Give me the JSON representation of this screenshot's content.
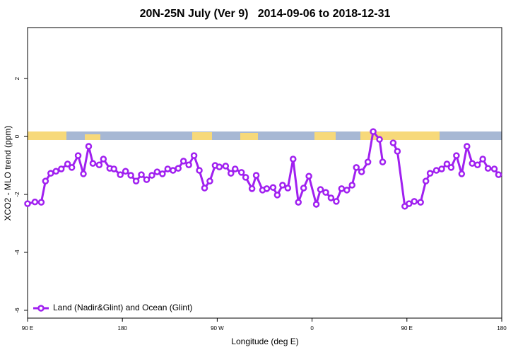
{
  "chart_data": {
    "type": "line",
    "title": "20N-25N July (Ver 9)   2014-09-06 to 2018-12-31",
    "x_label": "Longitude (deg E)",
    "y_label": "XCO2 - MLO trend (ppm)",
    "xlim": [
      90,
      540
    ],
    "xticks": [
      {
        "value": 90,
        "label": "90 E"
      },
      180,
      {
        "value": 270,
        "label": "90 W"
      },
      {
        "value": 360,
        "label": "0"
      },
      {
        "value": 450,
        "label": "90 E"
      },
      {
        "value": 540,
        "label": "180"
      }
    ],
    "ylim": [
      -6.27,
      3.76
    ],
    "yticks": [
      -6,
      -4,
      -2,
      0,
      2
    ],
    "legend": "bottom-left",
    "series": [
      {
        "name": "Land (Nadir&Glint) and Ocean (Glint)",
        "color": "#a020f0",
        "x": [
          90,
          97,
          103,
          107,
          112,
          117,
          122,
          128,
          132,
          138,
          143,
          148,
          152,
          158,
          162,
          168,
          172,
          178,
          183,
          188,
          193,
          198,
          203,
          208,
          213,
          218,
          223,
          228,
          233,
          238,
          243,
          248,
          253,
          258,
          263,
          268,
          272,
          278,
          283,
          287,
          293,
          297,
          303,
          307,
          313,
          317,
          323,
          327,
          332,
          337,
          342,
          347,
          352,
          357,
          364,
          368,
          373,
          378,
          383,
          388,
          393,
          398,
          402,
          407,
          413,
          418,
          424,
          427,
          432,
          437,
          441,
          448,
          452,
          457,
          463,
          468,
          472,
          478,
          483,
          488,
          492,
          497,
          502,
          507,
          512,
          517,
          522,
          527,
          533,
          537
        ],
        "values": [
          -2.32,
          -2.26,
          -2.27,
          -1.54,
          -1.27,
          -1.2,
          -1.12,
          -0.95,
          -1.07,
          -0.66,
          -1.29,
          -0.34,
          -0.93,
          -0.98,
          -0.78,
          -1.1,
          -1.12,
          -1.32,
          -1.2,
          -1.34,
          -1.54,
          -1.32,
          -1.49,
          -1.34,
          -1.22,
          -1.29,
          -1.12,
          -1.17,
          -1.1,
          -0.85,
          -0.98,
          -0.66,
          -1.17,
          -1.78,
          -1.54,
          -1.0,
          -1.05,
          -1.02,
          -1.27,
          -1.12,
          -1.24,
          -1.41,
          -1.8,
          -1.34,
          -1.85,
          -1.8,
          -1.76,
          -2.02,
          -1.68,
          -1.78,
          -0.78,
          -2.27,
          -1.78,
          -1.37,
          -2.34,
          -1.83,
          -1.93,
          -2.12,
          -2.24,
          -1.8,
          -1.85,
          -1.68,
          -1.07,
          -1.22,
          -0.88,
          0.17,
          -0.1,
          -0.88,
          null,
          -0.22,
          -0.51,
          -2.41,
          -2.32,
          -2.24,
          -2.27,
          -1.54,
          -1.27,
          -1.17,
          -1.12,
          -0.95,
          -1.07,
          -0.66,
          -1.29,
          -0.34,
          -0.93,
          -0.98,
          -0.78,
          -1.1,
          -1.12,
          -1.32
        ]
      }
    ]
  }
}
